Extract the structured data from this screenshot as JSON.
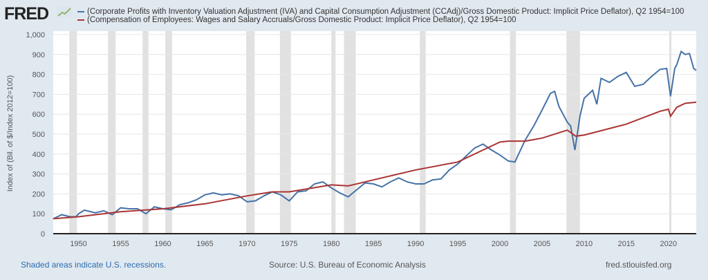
{
  "header": {
    "logo": "FRED"
  },
  "chart_data": {
    "type": "line",
    "title": "",
    "xlabel": "",
    "ylabel": "Index of (Bil. of $/Index 2012=100)",
    "xlim": [
      1947,
      2023.3
    ],
    "ylim": [
      0,
      1000
    ],
    "grid": true,
    "legend": "top",
    "yticks": [
      "0",
      "100",
      "200",
      "300",
      "400",
      "500",
      "600",
      "700",
      "800",
      "900",
      "1,000"
    ],
    "xticks": [
      "1950",
      "1955",
      "1960",
      "1965",
      "1970",
      "1975",
      "1980",
      "1985",
      "1990",
      "1995",
      "2000",
      "2005",
      "2010",
      "2015",
      "2020"
    ],
    "recessions": [
      [
        1948.9,
        1949.8
      ],
      [
        1953.5,
        1954.4
      ],
      [
        1957.6,
        1958.3
      ],
      [
        1960.3,
        1961.1
      ],
      [
        1969.9,
        1970.9
      ],
      [
        1973.9,
        1975.2
      ],
      [
        1980.0,
        1980.5
      ],
      [
        1981.5,
        1982.9
      ],
      [
        1990.5,
        1991.2
      ],
      [
        2001.2,
        2001.9
      ],
      [
        2007.9,
        2009.5
      ],
      [
        2020.1,
        2020.3
      ]
    ],
    "series": [
      {
        "name": "(Corporate Profits with Inventory Valuation Adjustment (IVA) and Capital Consumption Adjustment (CCAdj)/Gross Domestic Product: Implicit Price Deflator), Q2 1954=100",
        "color": "#4572a7",
        "x": [
          1947,
          1948,
          1949,
          1949.7,
          1950,
          1950.7,
          1951,
          1952,
          1953,
          1954,
          1955,
          1956,
          1957,
          1958,
          1959,
          1960,
          1961,
          1962,
          1963,
          1964,
          1965,
          1966,
          1967,
          1968,
          1969,
          1970,
          1971,
          1972,
          1973,
          1974,
          1975,
          1976,
          1977,
          1978,
          1979,
          1980,
          1981,
          1982,
          1983,
          1984,
          1985,
          1986,
          1987,
          1988,
          1989,
          1990,
          1991,
          1992,
          1993,
          1994,
          1995,
          1996,
          1997,
          1998,
          1999,
          2000,
          2001,
          2001.8,
          2002,
          2003,
          2004,
          2005,
          2006,
          2006.5,
          2007,
          2008,
          2008.4,
          2008.9,
          2009.5,
          2010,
          2011,
          2011.5,
          2012,
          2013,
          2014,
          2015,
          2016,
          2017,
          2018,
          2019,
          2019.8,
          2020.25,
          2020.75,
          2021,
          2021.5,
          2022,
          2022.5,
          2023,
          2023.3
        ],
        "values": [
          75,
          95,
          85,
          85,
          100,
          118,
          115,
          105,
          115,
          95,
          130,
          125,
          125,
          100,
          135,
          125,
          120,
          145,
          155,
          170,
          195,
          205,
          195,
          200,
          190,
          160,
          165,
          190,
          210,
          195,
          165,
          210,
          215,
          250,
          260,
          230,
          205,
          185,
          220,
          255,
          250,
          235,
          260,
          280,
          260,
          250,
          250,
          270,
          275,
          320,
          350,
          390,
          430,
          450,
          420,
          395,
          365,
          360,
          380,
          470,
          540,
          620,
          705,
          715,
          640,
          560,
          540,
          420,
          590,
          680,
          720,
          650,
          780,
          760,
          790,
          810,
          740,
          750,
          790,
          825,
          830,
          690,
          830,
          850,
          915,
          900,
          905,
          830,
          820
        ]
      },
      {
        "name": "(Compensation of Employees: Wages and Salary Accruals/Gross Domestic Product: Implicit Price Deflator), Q2 1954=100",
        "color": "#aa3333",
        "x": [
          1947,
          1950,
          1955,
          1960,
          1965,
          1970,
          1973,
          1975,
          1980,
          1982,
          1985,
          1990,
          1995,
          2000,
          2001,
          2003,
          2005,
          2008,
          2009,
          2010,
          2015,
          2019,
          2020,
          2020.25,
          2021,
          2022,
          2023.3
        ],
        "values": [
          75,
          85,
          110,
          125,
          150,
          190,
          210,
          210,
          245,
          240,
          270,
          320,
          360,
          460,
          465,
          465,
          480,
          520,
          490,
          495,
          550,
          615,
          625,
          590,
          635,
          655,
          660
        ]
      }
    ]
  },
  "footer": {
    "left": "Shaded areas indicate U.S. recessions.",
    "center": "Source: U.S. Bureau of Economic Analysis",
    "right": "fred.stlouisfed.org"
  }
}
